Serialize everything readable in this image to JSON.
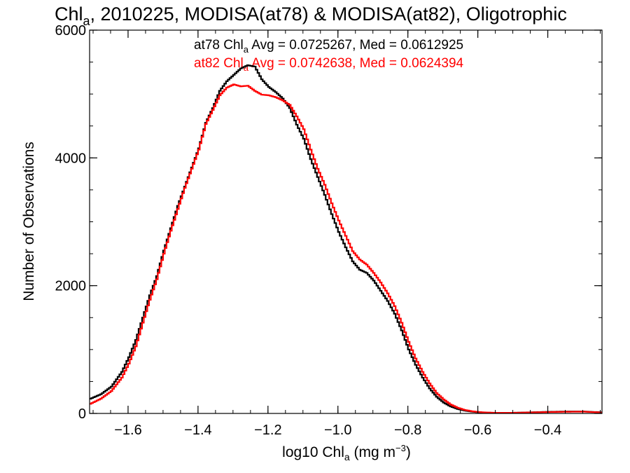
{
  "chart_data": {
    "type": "line",
    "title": {
      "pre": "Chl",
      "sub": "a",
      "post": ", 2010225, MODISA(at78) & MODISA(at82), Oligotrophic"
    },
    "xlabel": {
      "pre": "log10 Chl",
      "sub": "a",
      "mid": " (mg m",
      "sup": "−3",
      "post": ")"
    },
    "ylabel": "Number of Observations",
    "xlim": [
      -1.71,
      -0.245
    ],
    "ylim": [
      0,
      6000
    ],
    "x_ticks": [
      {
        "value": -1.6,
        "label": "−1.6"
      },
      {
        "value": -1.4,
        "label": "−1.4"
      },
      {
        "value": -1.2,
        "label": "−1.2"
      },
      {
        "value": -1.0,
        "label": "−1.0"
      },
      {
        "value": -0.8,
        "label": "−0.8"
      },
      {
        "value": -0.6,
        "label": "−0.6"
      },
      {
        "value": -0.4,
        "label": "−0.4"
      }
    ],
    "x_minor_step": 0.05,
    "y_ticks": [
      {
        "value": 0,
        "label": "0"
      },
      {
        "value": 2000,
        "label": "2000"
      },
      {
        "value": 4000,
        "label": "4000"
      },
      {
        "value": 6000,
        "label": "6000"
      }
    ],
    "y_minor_step": 500,
    "grid": false,
    "legend_placement": "top-center",
    "legend": [
      {
        "pre": "at78 Chl",
        "sub": "a",
        "post": " Avg = 0.0725267, Med = 0.0612925",
        "color": "#000000"
      },
      {
        "pre": "at82 Chl",
        "sub": "a",
        "post": " Avg = 0.0742638, Med = 0.0624394",
        "color": "#ff0000"
      }
    ],
    "series": [
      {
        "color": "#000000",
        "points": [
          [
            -1.71,
            230
          ],
          [
            -1.68,
            300
          ],
          [
            -1.65,
            420
          ],
          [
            -1.62,
            650
          ],
          [
            -1.6,
            880
          ],
          [
            -1.58,
            1150
          ],
          [
            -1.56,
            1500
          ],
          [
            -1.54,
            1850
          ],
          [
            -1.52,
            2150
          ],
          [
            -1.5,
            2550
          ],
          [
            -1.48,
            2900
          ],
          [
            -1.46,
            3250
          ],
          [
            -1.44,
            3550
          ],
          [
            -1.42,
            3850
          ],
          [
            -1.4,
            4150
          ],
          [
            -1.38,
            4550
          ],
          [
            -1.36,
            4780
          ],
          [
            -1.34,
            5050
          ],
          [
            -1.32,
            5200
          ],
          [
            -1.3,
            5300
          ],
          [
            -1.28,
            5400
          ],
          [
            -1.26,
            5450
          ],
          [
            -1.24,
            5430
          ],
          [
            -1.22,
            5230
          ],
          [
            -1.2,
            5110
          ],
          [
            -1.18,
            5030
          ],
          [
            -1.16,
            4930
          ],
          [
            -1.14,
            4780
          ],
          [
            -1.12,
            4520
          ],
          [
            -1.1,
            4300
          ],
          [
            -1.08,
            3980
          ],
          [
            -1.06,
            3700
          ],
          [
            -1.04,
            3420
          ],
          [
            -1.02,
            3120
          ],
          [
            -1.0,
            2840
          ],
          [
            -0.98,
            2600
          ],
          [
            -0.96,
            2380
          ],
          [
            -0.94,
            2250
          ],
          [
            -0.92,
            2200
          ],
          [
            -0.9,
            2080
          ],
          [
            -0.88,
            1920
          ],
          [
            -0.86,
            1760
          ],
          [
            -0.84,
            1560
          ],
          [
            -0.82,
            1300
          ],
          [
            -0.8,
            1000
          ],
          [
            -0.78,
            760
          ],
          [
            -0.76,
            560
          ],
          [
            -0.74,
            390
          ],
          [
            -0.72,
            260
          ],
          [
            -0.7,
            170
          ],
          [
            -0.68,
            110
          ],
          [
            -0.66,
            70
          ],
          [
            -0.64,
            45
          ],
          [
            -0.62,
            28
          ],
          [
            -0.6,
            18
          ],
          [
            -0.58,
            12
          ],
          [
            -0.55,
            8
          ],
          [
            -0.5,
            10
          ],
          [
            -0.45,
            18
          ],
          [
            -0.4,
            25
          ],
          [
            -0.35,
            30
          ],
          [
            -0.3,
            30
          ],
          [
            -0.25,
            18
          ]
        ]
      },
      {
        "color": "#ff0000",
        "points": [
          [
            -1.71,
            150
          ],
          [
            -1.68,
            230
          ],
          [
            -1.65,
            350
          ],
          [
            -1.62,
            560
          ],
          [
            -1.6,
            780
          ],
          [
            -1.58,
            1050
          ],
          [
            -1.56,
            1420
          ],
          [
            -1.54,
            1780
          ],
          [
            -1.52,
            2100
          ],
          [
            -1.5,
            2500
          ],
          [
            -1.48,
            2860
          ],
          [
            -1.46,
            3200
          ],
          [
            -1.44,
            3530
          ],
          [
            -1.42,
            3830
          ],
          [
            -1.4,
            4130
          ],
          [
            -1.38,
            4530
          ],
          [
            -1.36,
            4750
          ],
          [
            -1.34,
            4980
          ],
          [
            -1.32,
            5100
          ],
          [
            -1.3,
            5150
          ],
          [
            -1.28,
            5120
          ],
          [
            -1.26,
            5130
          ],
          [
            -1.24,
            5050
          ],
          [
            -1.22,
            4990
          ],
          [
            -1.2,
            4980
          ],
          [
            -1.18,
            4950
          ],
          [
            -1.16,
            4900
          ],
          [
            -1.14,
            4830
          ],
          [
            -1.12,
            4650
          ],
          [
            -1.1,
            4450
          ],
          [
            -1.08,
            4130
          ],
          [
            -1.06,
            3830
          ],
          [
            -1.04,
            3580
          ],
          [
            -1.02,
            3290
          ],
          [
            -1.0,
            3020
          ],
          [
            -0.98,
            2780
          ],
          [
            -0.96,
            2540
          ],
          [
            -0.94,
            2410
          ],
          [
            -0.92,
            2330
          ],
          [
            -0.9,
            2200
          ],
          [
            -0.88,
            2050
          ],
          [
            -0.86,
            1880
          ],
          [
            -0.84,
            1680
          ],
          [
            -0.82,
            1420
          ],
          [
            -0.8,
            1120
          ],
          [
            -0.78,
            860
          ],
          [
            -0.76,
            650
          ],
          [
            -0.74,
            470
          ],
          [
            -0.72,
            320
          ],
          [
            -0.7,
            220
          ],
          [
            -0.68,
            140
          ],
          [
            -0.66,
            90
          ],
          [
            -0.64,
            55
          ],
          [
            -0.62,
            35
          ],
          [
            -0.6,
            22
          ],
          [
            -0.58,
            15
          ],
          [
            -0.55,
            10
          ],
          [
            -0.5,
            10
          ],
          [
            -0.45,
            16
          ],
          [
            -0.4,
            22
          ],
          [
            -0.35,
            26
          ],
          [
            -0.3,
            28
          ],
          [
            -0.25,
            15
          ]
        ]
      }
    ]
  }
}
